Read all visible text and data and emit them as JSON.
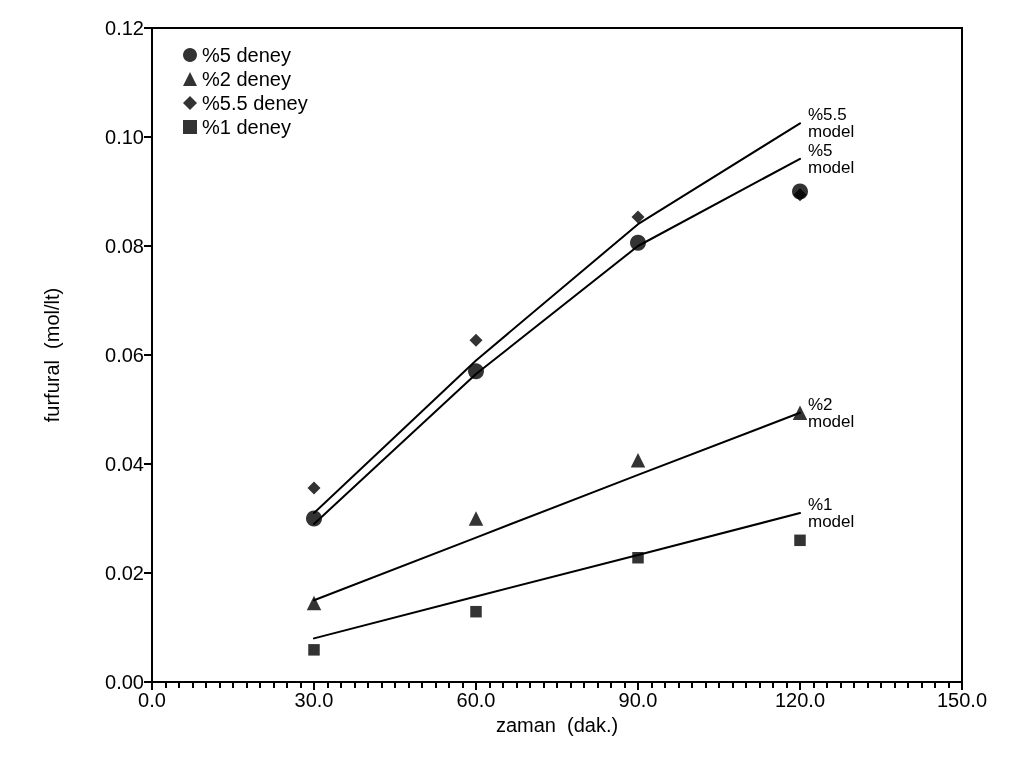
{
  "chart_data": {
    "type": "scatter",
    "xlabel": "zaman  (dak.)",
    "ylabel": "furfural  (mol/lt)",
    "xlim": [
      0,
      150
    ],
    "xticks": [
      {
        "value": 0,
        "label": "0.0"
      },
      {
        "value": 30,
        "label": "30.0"
      },
      {
        "value": 60,
        "label": "60.0"
      },
      {
        "value": 90,
        "label": "90.0"
      },
      {
        "value": 120,
        "label": "120.0"
      },
      {
        "value": 150,
        "label": "150.0"
      }
    ],
    "ylim": [
      0,
      0.12
    ],
    "yticks": [
      {
        "value": 0,
        "label": "0.00"
      },
      {
        "value": 0.02,
        "label": "0.02"
      },
      {
        "value": 0.04,
        "label": "0.04"
      },
      {
        "value": 0.06,
        "label": "0.06"
      },
      {
        "value": 0.08,
        "label": "0.08"
      },
      {
        "value": 0.1,
        "label": "0.10"
      },
      {
        "value": 0.12,
        "label": "0.12"
      }
    ],
    "x": [
      30,
      60,
      90,
      120
    ],
    "legend": "top left",
    "grid": false,
    "series": [
      {
        "name": "%5 deney",
        "color": "#000000",
        "marker": "circle",
        "values": [
          0.03,
          0.057,
          0.0806,
          0.09
        ]
      },
      {
        "name": "%2 deney",
        "color": "#000000",
        "marker": "triangle",
        "values": [
          0.0145,
          0.03,
          0.0407,
          0.0494
        ]
      },
      {
        "name": "%5.5 deney",
        "color": "#000000",
        "marker": "diamond",
        "values": [
          0.0356,
          0.0627,
          0.0853,
          0.0894
        ]
      },
      {
        "name": "%1 deney",
        "color": "#000000",
        "marker": "square",
        "values": [
          0.0059,
          0.0129,
          0.0228,
          0.026
        ]
      },
      {
        "name": "%5.5 model",
        "type": "line",
        "color": "#000000",
        "marker": "none",
        "values": [
          0.031,
          0.059,
          0.084,
          0.1025
        ]
      },
      {
        "name": "%5 model",
        "type": "line",
        "color": "#000000",
        "marker": "none",
        "values": [
          0.029,
          0.0565,
          0.08,
          0.096
        ]
      },
      {
        "name": "%2 model",
        "type": "line",
        "color": "#000000",
        "marker": "none",
        "values": [
          0.015,
          0.0265,
          0.038,
          0.0494
        ]
      },
      {
        "name": "%1 model",
        "type": "line",
        "color": "#000000",
        "marker": "none",
        "values": [
          0.008,
          0.0157,
          0.0233,
          0.031
        ]
      }
    ]
  }
}
